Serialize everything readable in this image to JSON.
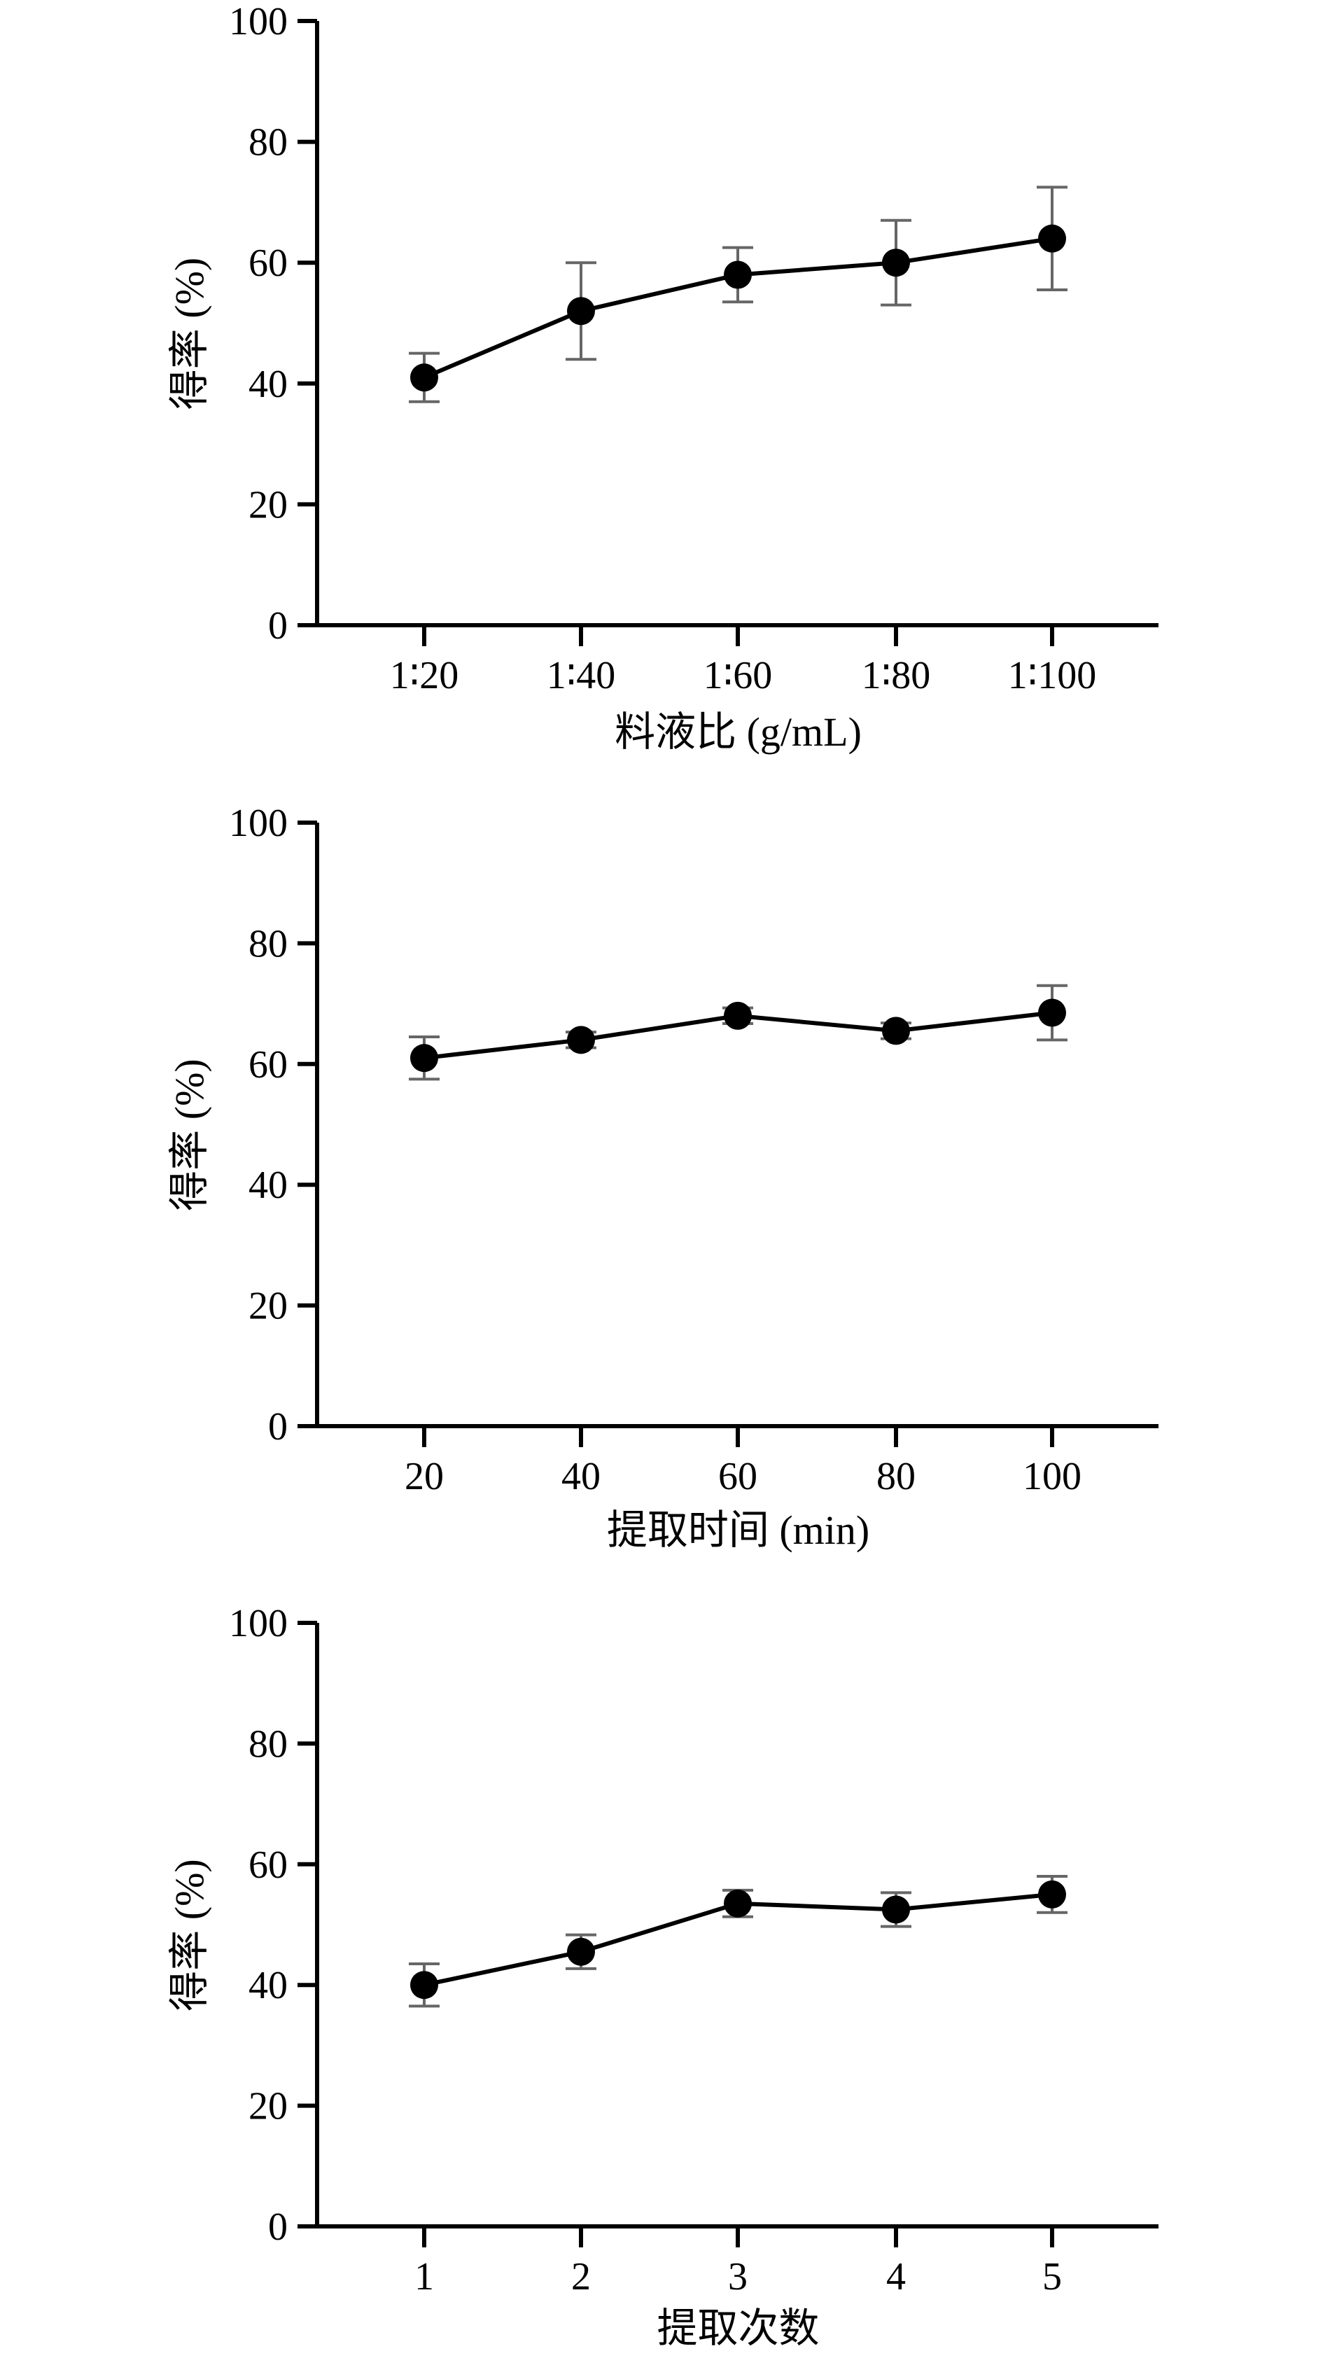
{
  "chart_data": [
    {
      "type": "line",
      "title": "",
      "xlabel": "料液比 (g/mL)",
      "ylabel": "得率 (%)",
      "categories": [
        "1∶20",
        "1∶40",
        "1∶60",
        "1∶80",
        "1∶100"
      ],
      "values": [
        41,
        52,
        58,
        60,
        64
      ],
      "error": [
        4,
        8,
        4.5,
        7,
        8.5
      ],
      "yticks": [
        "0",
        "20",
        "40",
        "60",
        "80",
        "100"
      ],
      "ylim": [
        0,
        100
      ],
      "grid": false,
      "colors": {
        "line": "#000000",
        "marker": "#000000",
        "errorbar": "#666666"
      }
    },
    {
      "type": "line",
      "title": "",
      "xlabel": "提取时间 (min)",
      "ylabel": "得率 (%)",
      "categories": [
        "20",
        "40",
        "60",
        "80",
        "100"
      ],
      "values": [
        61,
        64,
        68,
        65.5,
        68.5
      ],
      "error": [
        3.5,
        1.3,
        1.3,
        1.3,
        4.5
      ],
      "yticks": [
        "0",
        "20",
        "40",
        "60",
        "80",
        "100"
      ],
      "ylim": [
        0,
        100
      ],
      "grid": false,
      "colors": {
        "line": "#000000",
        "marker": "#000000",
        "errorbar": "#666666"
      }
    },
    {
      "type": "line",
      "title": "",
      "xlabel": "提取次数",
      "ylabel": "得率 (%)",
      "categories": [
        "1",
        "2",
        "3",
        "4",
        "5"
      ],
      "values": [
        40,
        45.5,
        53.5,
        52.5,
        55
      ],
      "error": [
        3.5,
        2.8,
        2.2,
        2.8,
        3
      ],
      "yticks": [
        "0",
        "20",
        "40",
        "60",
        "80",
        "100"
      ],
      "ylim": [
        0,
        100
      ],
      "grid": false,
      "colors": {
        "line": "#000000",
        "marker": "#000000",
        "errorbar": "#666666"
      }
    }
  ]
}
